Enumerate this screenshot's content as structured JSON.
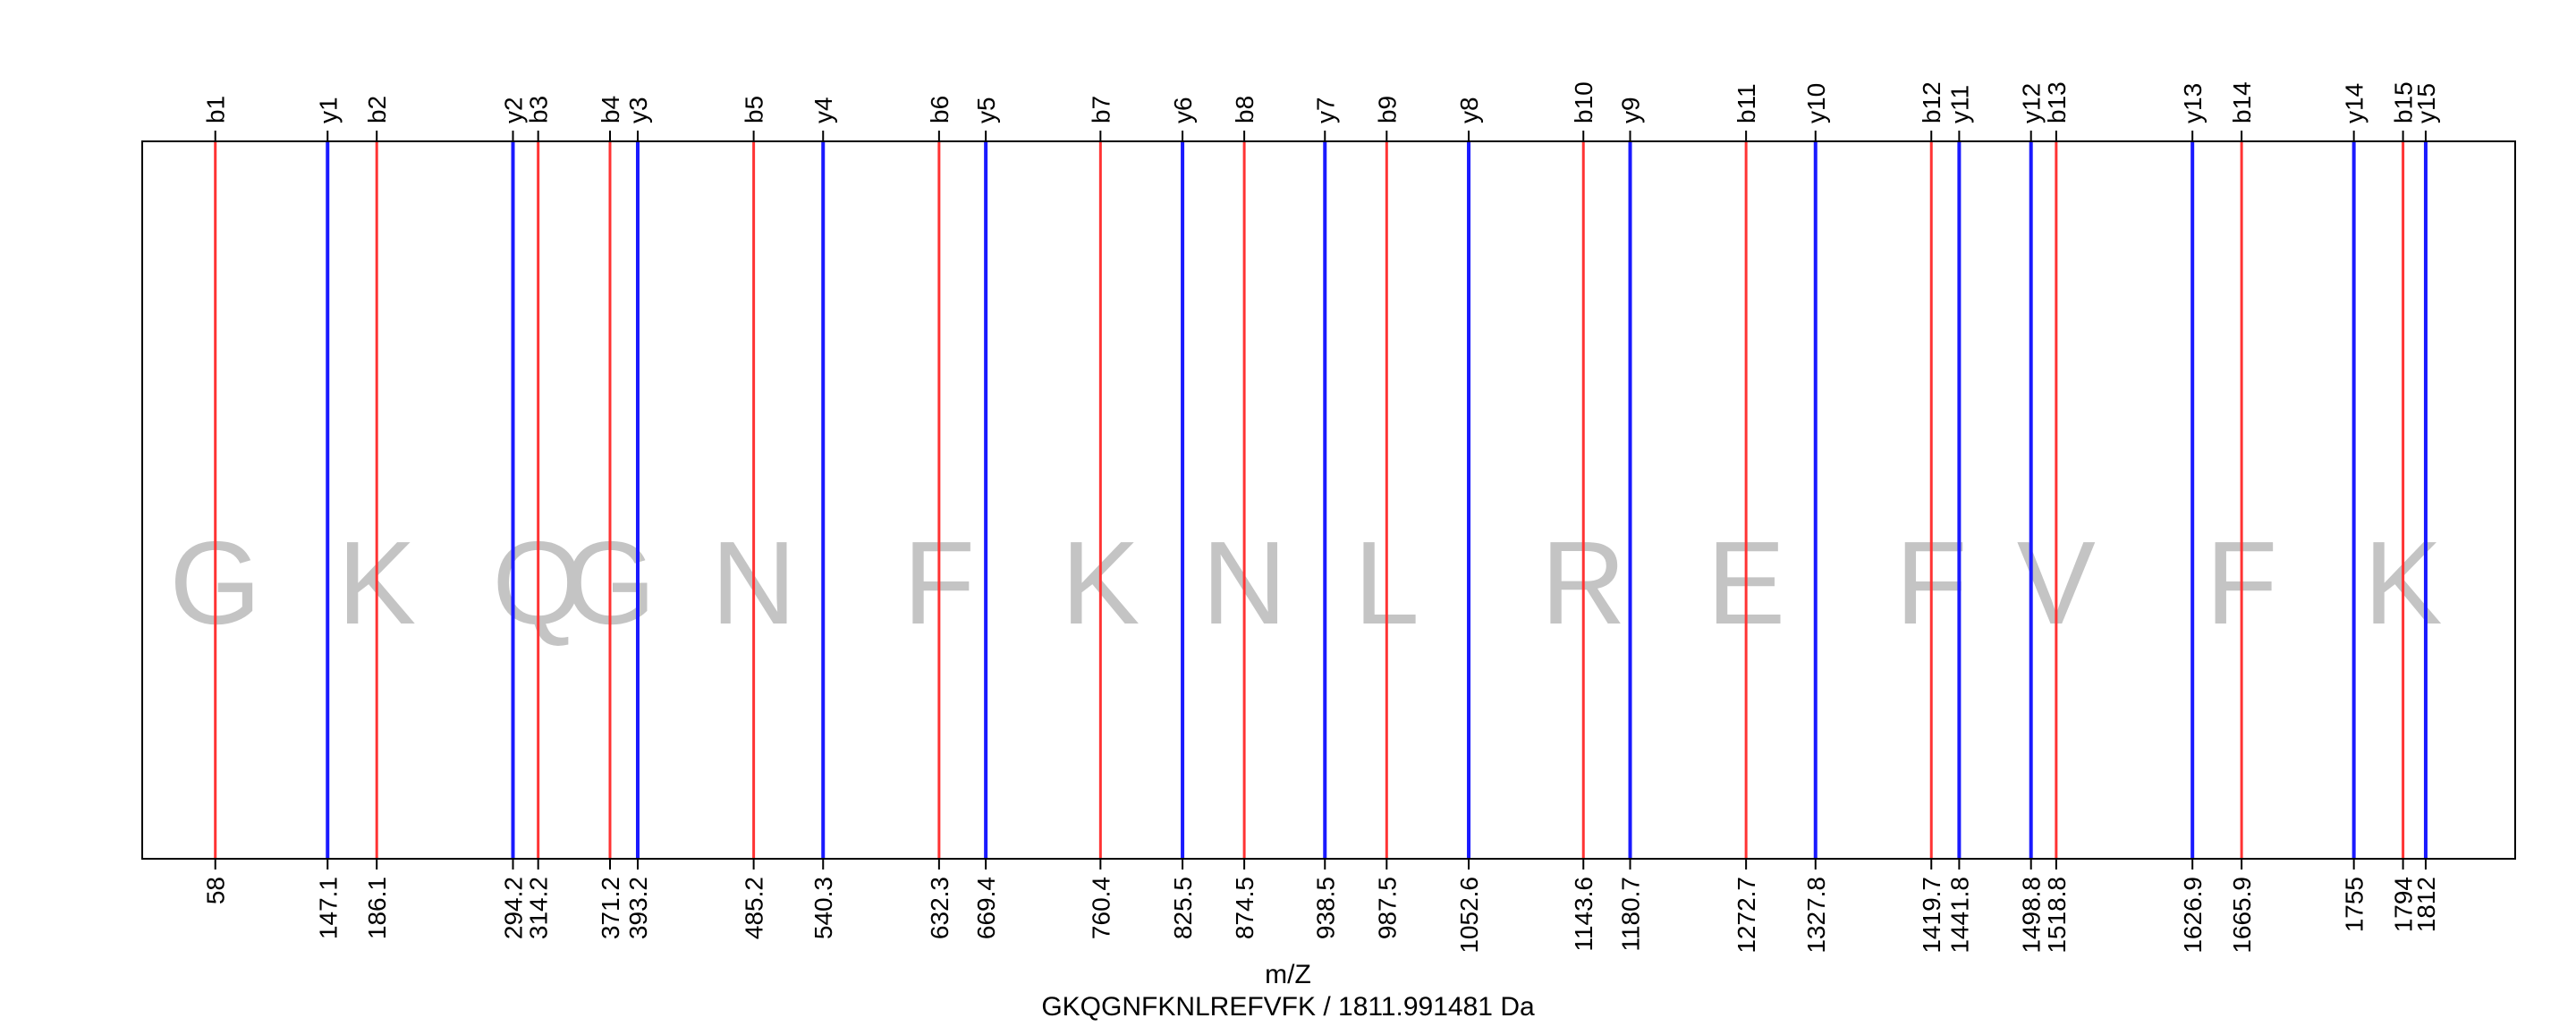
{
  "chart_data": {
    "type": "spectrum",
    "xlabel": "m/Z",
    "subtitle": "GKQGNFKNLREFVFK / 1811.991481 Da",
    "colors": {
      "b": "#ff3333",
      "y": "#1a1aff",
      "residue": "#c4c4c4",
      "frame": "#000000"
    },
    "xlim": [
      0,
      1883
    ],
    "b_ions": [
      {
        "label": "b1",
        "mz": 58.0,
        "tick": "58"
      },
      {
        "label": "b2",
        "mz": 186.1,
        "tick": "186.1"
      },
      {
        "label": "b3",
        "mz": 314.2,
        "tick": "314.2"
      },
      {
        "label": "b4",
        "mz": 371.2,
        "tick": "371.2"
      },
      {
        "label": "b5",
        "mz": 485.2,
        "tick": "485.2"
      },
      {
        "label": "b6",
        "mz": 632.3,
        "tick": "632.3"
      },
      {
        "label": "b7",
        "mz": 760.4,
        "tick": "760.4"
      },
      {
        "label": "b8",
        "mz": 874.5,
        "tick": "874.5"
      },
      {
        "label": "b9",
        "mz": 987.5,
        "tick": "987.5"
      },
      {
        "label": "b10",
        "mz": 1143.6,
        "tick": "1143.6"
      },
      {
        "label": "b11",
        "mz": 1272.7,
        "tick": "1272.7"
      },
      {
        "label": "b12",
        "mz": 1419.7,
        "tick": "1419.7"
      },
      {
        "label": "b13",
        "mz": 1518.8,
        "tick": "1518.8"
      },
      {
        "label": "b14",
        "mz": 1665.9,
        "tick": "1665.9"
      },
      {
        "label": "b15",
        "mz": 1794.0,
        "tick": "1794"
      }
    ],
    "y_ions": [
      {
        "label": "y1",
        "mz": 147.1,
        "tick": "147.1"
      },
      {
        "label": "y2",
        "mz": 294.2,
        "tick": "294.2"
      },
      {
        "label": "y3",
        "mz": 393.2,
        "tick": "393.2"
      },
      {
        "label": "y4",
        "mz": 540.3,
        "tick": "540.3"
      },
      {
        "label": "y5",
        "mz": 669.4,
        "tick": "669.4"
      },
      {
        "label": "y6",
        "mz": 825.5,
        "tick": "825.5"
      },
      {
        "label": "y7",
        "mz": 938.5,
        "tick": "938.5"
      },
      {
        "label": "y8",
        "mz": 1052.6,
        "tick": "1052.6"
      },
      {
        "label": "y9",
        "mz": 1180.7,
        "tick": "1180.7"
      },
      {
        "label": "y10",
        "mz": 1327.8,
        "tick": "1327.8"
      },
      {
        "label": "y11",
        "mz": 1441.8,
        "tick": "1441.8"
      },
      {
        "label": "y12",
        "mz": 1498.8,
        "tick": "1498.8"
      },
      {
        "label": "y13",
        "mz": 1626.9,
        "tick": "1626.9"
      },
      {
        "label": "y14",
        "mz": 1755.0,
        "tick": "1755"
      },
      {
        "label": "y15",
        "mz": 1812.0,
        "tick": "1812"
      }
    ],
    "residues": [
      {
        "letter": "G",
        "mz": 58.0
      },
      {
        "letter": "K",
        "mz": 186.1
      },
      {
        "letter": "Q",
        "mz": 314.2
      },
      {
        "letter": "G",
        "mz": 371.2
      },
      {
        "letter": "N",
        "mz": 485.2
      },
      {
        "letter": "F",
        "mz": 632.3
      },
      {
        "letter": "K",
        "mz": 760.4
      },
      {
        "letter": "N",
        "mz": 874.5
      },
      {
        "letter": "L",
        "mz": 987.5
      },
      {
        "letter": "R",
        "mz": 1143.6
      },
      {
        "letter": "E",
        "mz": 1272.7
      },
      {
        "letter": "F",
        "mz": 1419.7
      },
      {
        "letter": "V",
        "mz": 1518.8
      },
      {
        "letter": "F",
        "mz": 1665.9
      },
      {
        "letter": "K",
        "mz": 1794.0
      }
    ]
  }
}
